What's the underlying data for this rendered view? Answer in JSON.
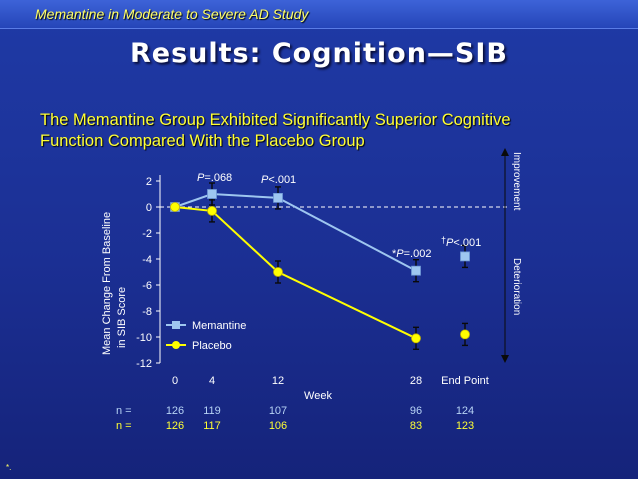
{
  "header": {
    "study": "Memantine in Moderate to Severe AD Study"
  },
  "slide": {
    "title": "Results: Cognition—SIB",
    "subtitle_line1": "The Memantine Group Exhibited Significantly Superior Cognitive",
    "subtitle_line2": "Function Compared With the Placebo Group"
  },
  "footnote": "*.",
  "colors": {
    "memantine": "#9ec6f0",
    "placebo": "#ffff00",
    "dashed_line": "#ffffff",
    "n_memantine": "#b7d3f5",
    "n_placebo": "#ffff33"
  },
  "chart_data": {
    "type": "line",
    "xlabel": "Week",
    "ylabel_line1": "Mean Change From Baseline",
    "ylabel_line2": "in SIB Score",
    "ylim": [
      -12,
      2
    ],
    "yticks": [
      "2",
      "0",
      "-2",
      "-4",
      "-6",
      "-8",
      "-10",
      "-12"
    ],
    "categories": [
      "0",
      "4",
      "12",
      "28",
      "End Point"
    ],
    "series": [
      {
        "name": "Memantine",
        "values": [
          0,
          1.0,
          0.7,
          -4.9,
          -3.8
        ]
      },
      {
        "name": "Placebo",
        "values": [
          0,
          -0.3,
          -5.0,
          -10.1,
          -9.8
        ]
      }
    ],
    "annotations": {
      "week4": "=.068",
      "week4_p": "P",
      "week12": "<.001",
      "week12_p": "P",
      "week28_mark": "*",
      "week28": "=.002",
      "week28_p": "P",
      "end_mark": "†",
      "end": "<.001",
      "end_p": "P"
    },
    "right_labels": {
      "top": "Improvement",
      "bottom": "Deterioration"
    },
    "legend": {
      "placement": "bottom-left",
      "items": [
        "Memantine",
        "Placebo"
      ]
    },
    "n_table": {
      "label": "n =",
      "memantine": [
        "126",
        "119",
        "107",
        "96",
        "124"
      ],
      "placebo": [
        "126",
        "117",
        "106",
        "83",
        "123"
      ]
    }
  }
}
